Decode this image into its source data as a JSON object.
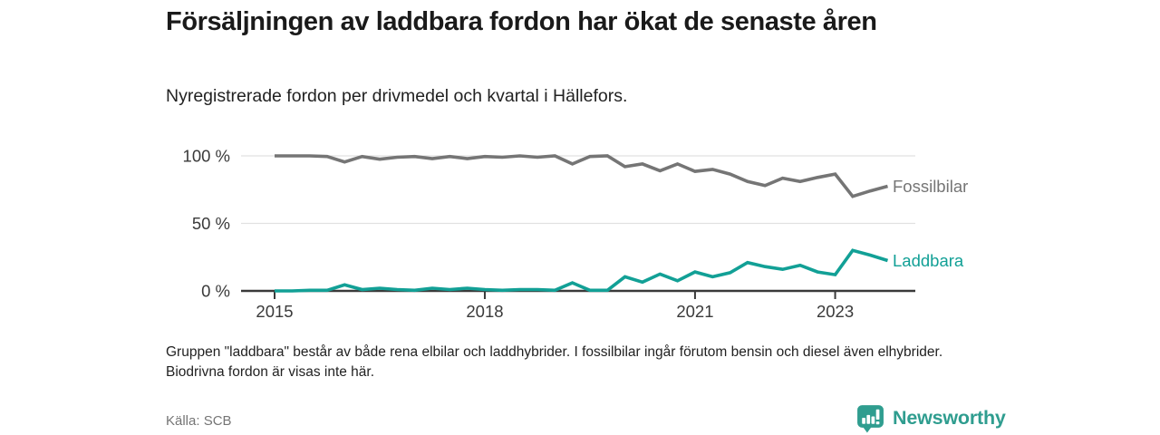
{
  "header": {
    "title": "Försäljningen av laddbara fordon har ökat de senaste åren",
    "subtitle": "Nyregistrerade fordon per drivmedel och kvartal i Hällefors."
  },
  "chart_data": {
    "type": "line",
    "title": "Försäljningen av laddbara fordon har ökat de senaste åren",
    "subtitle": "Nyregistrerade fordon per drivmedel och kvartal i Hällefors.",
    "x_unit": "quarter",
    "x": [
      "2015Q1",
      "2015Q2",
      "2015Q3",
      "2015Q4",
      "2016Q1",
      "2016Q2",
      "2016Q3",
      "2016Q4",
      "2017Q1",
      "2017Q2",
      "2017Q3",
      "2017Q4",
      "2018Q1",
      "2018Q2",
      "2018Q3",
      "2018Q4",
      "2019Q1",
      "2019Q2",
      "2019Q3",
      "2019Q4",
      "2020Q1",
      "2020Q2",
      "2020Q3",
      "2020Q4",
      "2021Q1",
      "2021Q2",
      "2021Q3",
      "2021Q4",
      "2022Q1",
      "2022Q2",
      "2022Q3",
      "2022Q4",
      "2023Q1",
      "2023Q2",
      "2023Q3",
      "2023Q4"
    ],
    "x_ticks": [
      {
        "label": "2015",
        "x_index": 0
      },
      {
        "label": "2018",
        "x_index": 12
      },
      {
        "label": "2021",
        "x_index": 24
      },
      {
        "label": "2023",
        "x_index": 32
      }
    ],
    "y_ticks": [
      {
        "label": "0 %",
        "value": 0
      },
      {
        "label": "50 %",
        "value": 50
      },
      {
        "label": "100 %",
        "value": 100
      }
    ],
    "ylim": [
      0,
      100
    ],
    "grid": "horizontal",
    "legend_position": "end-of-line",
    "series": [
      {
        "name": "Fossilbilar",
        "color": "#757575",
        "values": [
          100,
          100,
          100,
          99.5,
          95.5,
          99.5,
          97.5,
          99,
          99.5,
          98,
          99.5,
          98,
          99.5,
          99,
          100,
          99,
          100,
          94,
          99.5,
          100,
          92,
          94,
          89,
          94,
          88.5,
          90,
          86.5,
          81,
          78,
          83.5,
          81,
          84,
          86.5,
          70,
          74,
          77.5
        ]
      },
      {
        "name": "Laddbara",
        "color": "#12A096",
        "values": [
          0,
          0,
          0.5,
          0.5,
          4.5,
          1,
          2,
          1,
          0.5,
          2,
          1,
          2,
          1,
          0.5,
          1,
          1,
          0.5,
          6,
          0.5,
          0.5,
          10.5,
          6.5,
          12.5,
          7.5,
          14,
          10.5,
          13.5,
          21,
          18,
          16,
          19,
          14,
          12,
          30,
          26.5,
          22.5
        ]
      }
    ]
  },
  "footnote": "Gruppen \"laddbara\" består av både rena elbilar och laddhybrider. I fossilbilar ingår förutom bensin och diesel även elhybrider. Biodrivna fordon är visas inte här.",
  "source": "Källa: SCB",
  "branding": {
    "logo_text": "Newsworthy",
    "logo_color": "#2F9D8F",
    "logo_icon": "bar-chart-speech-bubble-icon"
  }
}
